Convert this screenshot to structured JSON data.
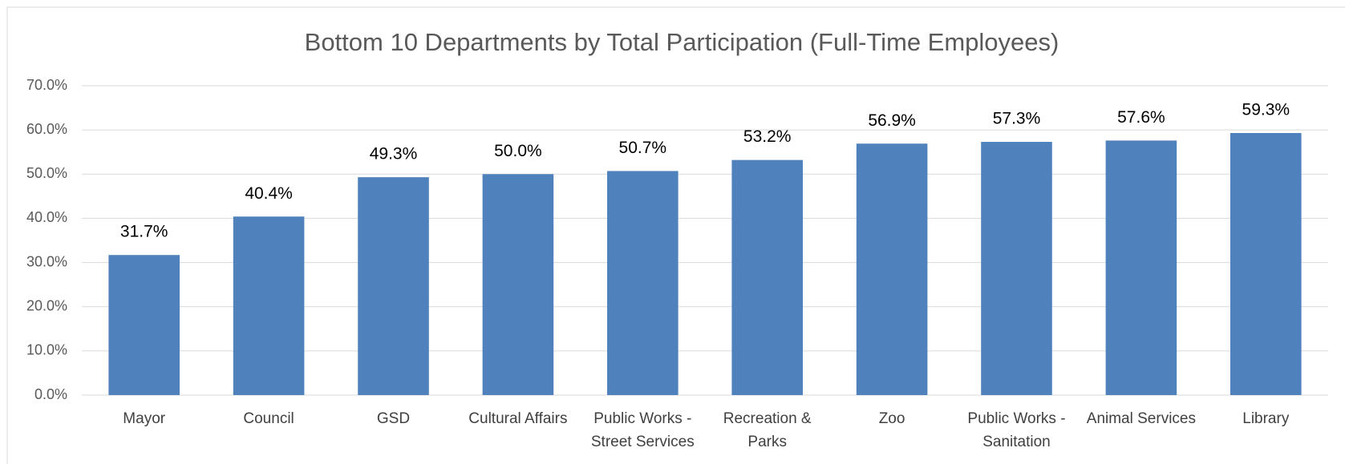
{
  "chart_data": {
    "type": "bar",
    "title": "Bottom 10 Departments by Total Participation (Full-Time Employees)",
    "categories": [
      "Mayor",
      "Council",
      "GSD",
      "Cultural Affairs",
      "Public Works - Street Services",
      "Recreation & Parks",
      "Zoo",
      "Public Works - Sanitation",
      "Animal Services",
      "Library"
    ],
    "values": [
      31.7,
      40.4,
      49.3,
      50.0,
      50.7,
      53.2,
      56.9,
      57.3,
      57.6,
      59.3
    ],
    "value_labels": [
      "31.7%",
      "40.4%",
      "49.3%",
      "50.0%",
      "50.7%",
      "53.2%",
      "56.9%",
      "57.3%",
      "57.6%",
      "59.3%"
    ],
    "color": "#4f81bd",
    "ylim": [
      0,
      70
    ],
    "yticks": [
      {
        "value": 0,
        "label": "0.0%"
      },
      {
        "value": 10,
        "label": "10.0%"
      },
      {
        "value": 20,
        "label": "20.0%"
      },
      {
        "value": 30,
        "label": "30.0%"
      },
      {
        "value": 40,
        "label": "40.0%"
      },
      {
        "value": 50,
        "label": "50.0%"
      },
      {
        "value": 60,
        "label": "60.0%"
      },
      {
        "value": 70,
        "label": "70.0%"
      }
    ],
    "grid": true
  }
}
